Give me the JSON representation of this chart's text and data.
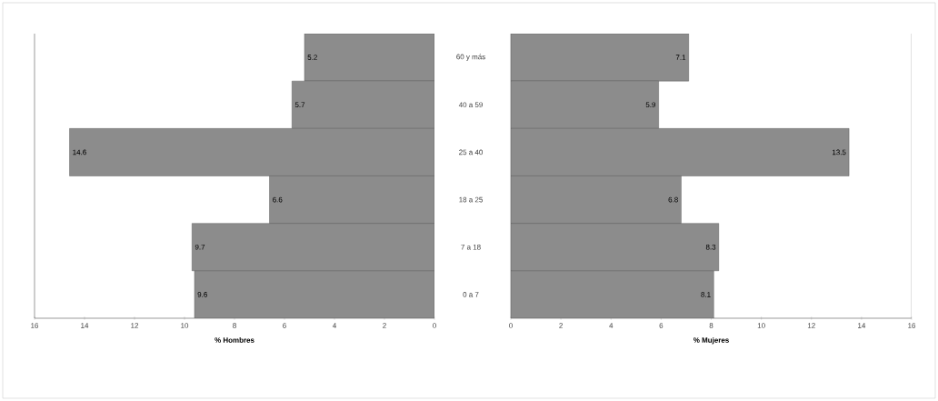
{
  "chart_data": [
    {
      "type": "bar",
      "orientation": "horizontal",
      "xlabel": "% Hombres",
      "categories": [
        null,
        null,
        null,
        null,
        null,
        null
      ],
      "values": [
        5.2,
        5.7,
        14.6,
        6.6,
        9.7,
        9.6
      ],
      "color": "#8c8c8c",
      "xlim": [
        16,
        0
      ],
      "xticks": [
        16,
        14,
        12,
        10,
        8,
        6,
        4,
        2,
        0
      ],
      "data_labels": true
    },
    {
      "type": "bar",
      "orientation": "horizontal",
      "xlabel": "% Mujeres",
      "categories": [
        "60 y más",
        "40 a 59",
        "25 a 40",
        "18 a 25",
        "7 a 18",
        "0 a 7"
      ],
      "values": [
        7.1,
        5.9,
        13.5,
        6.8,
        8.3,
        8.1
      ],
      "color": "#8c8c8c",
      "xlim": [
        0,
        16
      ],
      "xticks": [
        0,
        2,
        4,
        6,
        8,
        10,
        12,
        14,
        16
      ],
      "data_labels": true
    }
  ]
}
